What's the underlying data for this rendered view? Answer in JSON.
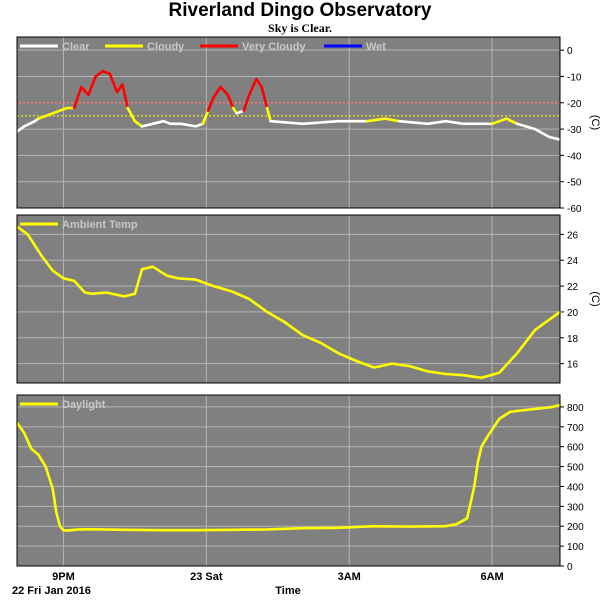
{
  "header": {
    "title": "Riverland Dingo Observatory",
    "subtitle": "Sky is Clear."
  },
  "chart_data": [
    {
      "type": "line",
      "panel": "sky",
      "legend": [
        "Clear",
        "Cloudy",
        "Very Cloudy",
        "Wet"
      ],
      "legend_colors": [
        "#ffffff",
        "#ffff00",
        "#ff0000",
        "#0000ff"
      ],
      "ylabel": "(C)",
      "ylim": [
        -60,
        5
      ],
      "yticks": [
        "0",
        "-10",
        "-20",
        "-30",
        "-40",
        "-50",
        "-60"
      ],
      "threshold_lines": [
        {
          "value": -20,
          "color": "#ff3333"
        },
        {
          "value": -25,
          "color": "#ffff00"
        }
      ],
      "segments": [
        {
          "condition": "Clear",
          "x": [
            0.0,
            0.2,
            0.5,
            0.6
          ],
          "y": [
            -31,
            -29,
            -27,
            -26
          ]
        },
        {
          "condition": "Cloudy",
          "x": [
            0.6,
            1.0,
            1.4,
            1.6
          ],
          "y": [
            -26,
            -24,
            -22,
            -22
          ]
        },
        {
          "condition": "Very Cloudy",
          "x": [
            1.6,
            1.8,
            2.0,
            2.2,
            2.4,
            2.6,
            2.8,
            2.95,
            3.1
          ],
          "y": [
            -22,
            -14,
            -17,
            -10,
            -8,
            -9,
            -16,
            -13,
            -22
          ]
        },
        {
          "condition": "Cloudy",
          "x": [
            3.1,
            3.3,
            3.5
          ],
          "y": [
            -22,
            -27,
            -29
          ]
        },
        {
          "condition": "Clear",
          "x": [
            3.5,
            3.8,
            4.1,
            4.3,
            4.6,
            5.0,
            5.2
          ],
          "y": [
            -29,
            -28,
            -27,
            -28,
            -28,
            -29,
            -28
          ]
        },
        {
          "condition": "Cloudy",
          "x": [
            5.2,
            5.35
          ],
          "y": [
            -28,
            -23
          ]
        },
        {
          "condition": "Very Cloudy",
          "x": [
            5.35,
            5.5,
            5.7,
            5.9,
            6.05
          ],
          "y": [
            -23,
            -18,
            -14,
            -17,
            -22
          ]
        },
        {
          "condition": "Cloudy",
          "x": [
            6.05,
            6.15
          ],
          "y": [
            -22,
            -24
          ]
        },
        {
          "condition": "Clear",
          "x": [
            6.15,
            6.35
          ],
          "y": [
            -24,
            -23
          ]
        },
        {
          "condition": "Very Cloudy",
          "x": [
            6.35,
            6.5,
            6.7,
            6.85,
            7.0
          ],
          "y": [
            -23,
            -17,
            -11,
            -14,
            -22
          ]
        },
        {
          "condition": "Cloudy",
          "x": [
            7.0,
            7.1
          ],
          "y": [
            -22,
            -27
          ]
        },
        {
          "condition": "Clear",
          "x": [
            7.1,
            8.0,
            9.0,
            9.8
          ],
          "y": [
            -27,
            -28,
            -27,
            -27
          ]
        },
        {
          "condition": "Cloudy",
          "x": [
            9.8,
            10.3,
            10.7
          ],
          "y": [
            -27,
            -26,
            -27
          ]
        },
        {
          "condition": "Clear",
          "x": [
            10.7,
            11.5,
            12.0,
            12.5,
            13.3
          ],
          "y": [
            -27,
            -28,
            -27,
            -28,
            -28
          ]
        },
        {
          "condition": "Cloudy",
          "x": [
            13.3,
            13.7,
            14.0
          ],
          "y": [
            -28,
            -26,
            -28
          ]
        },
        {
          "condition": "Clear",
          "x": [
            14.0,
            14.5,
            14.9,
            15.2
          ],
          "y": [
            -28,
            -30,
            -33,
            -34
          ]
        }
      ]
    },
    {
      "type": "line",
      "panel": "ambient",
      "legend": [
        "Ambient Temp"
      ],
      "legend_colors": [
        "#ffff00"
      ],
      "ylabel": "(C)",
      "ylim": [
        14.5,
        27.5
      ],
      "yticks": [
        "26",
        "24",
        "22",
        "20",
        "18",
        "16"
      ],
      "series": [
        {
          "name": "Ambient Temp",
          "x": [
            0.0,
            0.3,
            0.7,
            1.0,
            1.3,
            1.6,
            1.9,
            2.1,
            2.5,
            3.0,
            3.3,
            3.5,
            3.8,
            4.2,
            4.5,
            5.0,
            5.5,
            6.0,
            6.5,
            7.0,
            7.5,
            8.0,
            8.5,
            9.0,
            9.5,
            10.0,
            10.5,
            11.0,
            11.5,
            12.0,
            12.5,
            13.0,
            13.5,
            14.0,
            14.5,
            15.0,
            15.2
          ],
          "y": [
            26.6,
            26.0,
            24.3,
            23.2,
            22.6,
            22.4,
            21.5,
            21.4,
            21.5,
            21.2,
            21.4,
            23.3,
            23.5,
            22.8,
            22.6,
            22.5,
            22.0,
            21.6,
            21.0,
            20.0,
            19.2,
            18.2,
            17.6,
            16.8,
            16.2,
            15.7,
            16.0,
            15.8,
            15.4,
            15.2,
            15.1,
            14.9,
            15.3,
            16.8,
            18.6,
            19.6,
            20.0
          ]
        }
      ]
    },
    {
      "type": "line",
      "panel": "daylight",
      "legend": [
        "Daylight"
      ],
      "legend_colors": [
        "#ffff00"
      ],
      "ylim": [
        0,
        860
      ],
      "yticks": [
        "800",
        "700",
        "600",
        "500",
        "400",
        "300",
        "200",
        "100",
        "0"
      ],
      "series": [
        {
          "name": "Daylight",
          "x": [
            0.0,
            0.2,
            0.4,
            0.6,
            0.8,
            1.0,
            1.1,
            1.2,
            1.3,
            1.4,
            1.5,
            1.7,
            2.0,
            3.0,
            4.0,
            5.0,
            6.0,
            7.0,
            8.0,
            9.0,
            10.0,
            11.0,
            12.0,
            12.3,
            12.6,
            12.8,
            12.9,
            13.0,
            13.2,
            13.5,
            13.8,
            14.1,
            14.5,
            15.0,
            15.2
          ],
          "y": [
            720,
            670,
            590,
            560,
            500,
            390,
            270,
            200,
            180,
            178,
            180,
            183,
            185,
            182,
            180,
            180,
            182,
            184,
            190,
            192,
            200,
            198,
            200,
            210,
            240,
            400,
            520,
            600,
            660,
            740,
            775,
            782,
            790,
            800,
            810
          ]
        }
      ]
    }
  ],
  "xaxis": {
    "label": "Time",
    "date_label": "22 Fri Jan 2016",
    "ticks": [
      {
        "x": 1.3,
        "label": "9PM"
      },
      {
        "x": 5.3,
        "label": "23 Sat"
      },
      {
        "x": 9.3,
        "label": "3AM"
      },
      {
        "x": 13.3,
        "label": "6AM"
      }
    ]
  },
  "colors": {
    "plot_bg": "#808080",
    "grid": "#b4b4b4",
    "Clear": "#ffffff",
    "Cloudy": "#ffff00",
    "Very Cloudy": "#ff0000",
    "Wet": "#0000ff"
  }
}
